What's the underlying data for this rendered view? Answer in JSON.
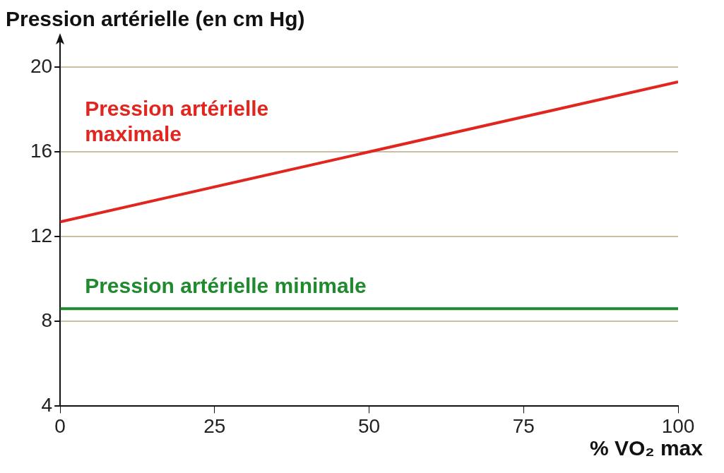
{
  "chart_data": {
    "type": "line",
    "ylabel": "Pression artérielle (en cm Hg)",
    "xlabel": "% VO₂ max",
    "x": [
      0,
      100
    ],
    "series": [
      {
        "name": "Pression artérielle maximale",
        "color": "#e0261f",
        "values": [
          12.7,
          19.3
        ]
      },
      {
        "name": "Pression artérielle minimale",
        "color": "#1f8a2e",
        "values": [
          8.6,
          8.6
        ]
      }
    ],
    "xlim": [
      0,
      100
    ],
    "xticks": [
      0,
      25,
      50,
      75,
      100
    ],
    "ylim": [
      4,
      20
    ],
    "yticks": [
      4,
      8,
      12,
      16,
      20
    ],
    "grid": "y",
    "marker": "none",
    "line_style": "solid",
    "legend": false
  }
}
